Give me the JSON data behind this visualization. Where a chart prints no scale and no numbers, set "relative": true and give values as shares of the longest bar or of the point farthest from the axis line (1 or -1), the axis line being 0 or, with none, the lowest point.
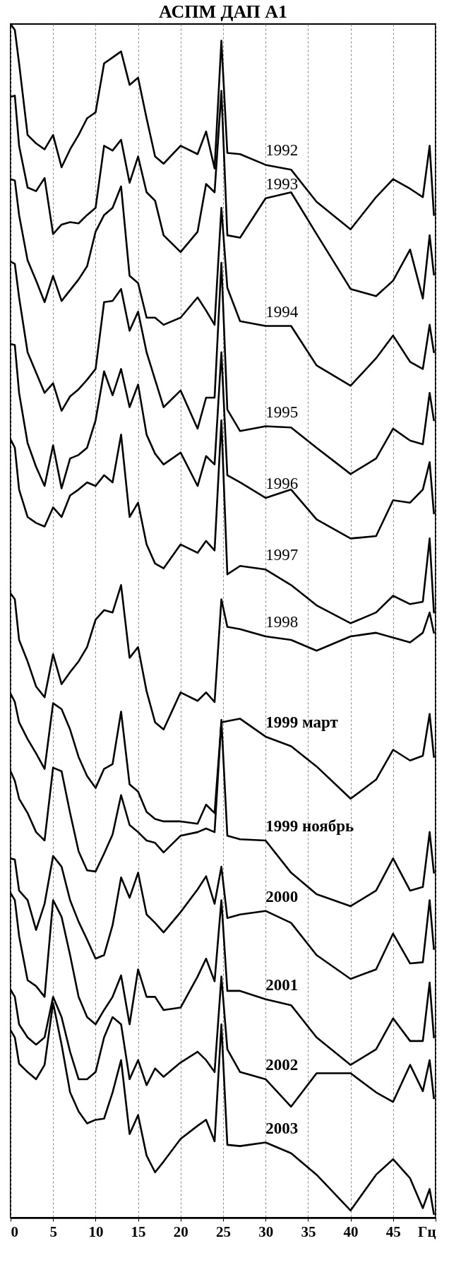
{
  "chart_data": {
    "type": "line",
    "title": "АСПМ   ДАП   А1",
    "relative": true,
    "legend": false,
    "grid": "x",
    "xlim": [
      0,
      50
    ],
    "xticks": [
      0,
      5,
      10,
      15,
      20,
      25,
      30,
      35,
      40,
      45,
      {
        "value": 50,
        "label": "Гц"
      }
    ],
    "x": [
      0,
      0.5,
      1,
      2,
      3,
      4,
      5,
      6,
      7,
      8,
      9,
      10,
      11,
      12,
      13,
      14,
      15,
      16,
      17,
      18,
      20,
      22,
      23,
      24,
      24.8,
      25.5,
      27,
      30,
      33,
      36,
      40,
      43,
      45,
      47,
      48.5,
      49.3,
      49.8
    ],
    "series": [
      {
        "name": "1992",
        "color": "#000000",
        "values": [
          1.0,
          0.995,
          0.967,
          0.907,
          0.9,
          0.895,
          0.907,
          0.88,
          0.895,
          0.907,
          0.921,
          0.926,
          0.967,
          0.972,
          0.977,
          0.949,
          0.955,
          0.921,
          0.889,
          0.883,
          0.898,
          0.891,
          0.91,
          0.879,
          0.986,
          0.892,
          0.891,
          0.882,
          0.878,
          0.851,
          0.828,
          0.855,
          0.87,
          0.862,
          0.855,
          0.898,
          0.84
        ]
      },
      {
        "name": "1993",
        "color": "#000000",
        "values": [
          0.939,
          0.94,
          0.898,
          0.863,
          0.86,
          0.871,
          0.824,
          0.832,
          0.834,
          0.833,
          0.84,
          0.846,
          0.898,
          0.894,
          0.903,
          0.867,
          0.889,
          0.859,
          0.852,
          0.823,
          0.809,
          0.826,
          0.866,
          0.859,
          0.944,
          0.823,
          0.821,
          0.854,
          0.859,
          0.824,
          0.778,
          0.772,
          0.785,
          0.811,
          0.77,
          0.823,
          0.79
        ]
      },
      {
        "name": "1994",
        "color": "#000000",
        "values": [
          0.87,
          0.869,
          0.84,
          0.802,
          0.785,
          0.767,
          0.789,
          0.768,
          0.777,
          0.786,
          0.797,
          0.826,
          0.84,
          0.846,
          0.864,
          0.789,
          0.783,
          0.754,
          0.754,
          0.748,
          0.754,
          0.771,
          0.76,
          0.748,
          0.846,
          0.779,
          0.751,
          0.747,
          0.747,
          0.714,
          0.697,
          0.72,
          0.739,
          0.717,
          0.711,
          0.748,
          0.725
        ]
      },
      {
        "name": "1995",
        "color": "#000000",
        "values": [
          0.801,
          0.799,
          0.771,
          0.725,
          0.708,
          0.691,
          0.699,
          0.676,
          0.688,
          0.694,
          0.702,
          0.711,
          0.767,
          0.768,
          0.778,
          0.743,
          0.759,
          0.725,
          0.702,
          0.679,
          0.693,
          0.661,
          0.687,
          0.687,
          0.8,
          0.677,
          0.659,
          0.663,
          0.662,
          0.645,
          0.623,
          0.636,
          0.661,
          0.651,
          0.648,
          0.691,
          0.668
        ]
      },
      {
        "name": "1996",
        "color": "#000000",
        "values": [
          0.732,
          0.731,
          0.691,
          0.649,
          0.629,
          0.613,
          0.647,
          0.611,
          0.636,
          0.639,
          0.645,
          0.668,
          0.709,
          0.689,
          0.711,
          0.679,
          0.698,
          0.656,
          0.64,
          0.631,
          0.641,
          0.613,
          0.638,
          0.631,
          0.725,
          0.622,
          0.616,
          0.603,
          0.61,
          0.585,
          0.569,
          0.571,
          0.601,
          0.599,
          0.61,
          0.633,
          0.59
        ]
      },
      {
        "name": "1997",
        "color": "#000000",
        "values": [
          0.652,
          0.645,
          0.61,
          0.587,
          0.582,
          0.579,
          0.595,
          0.587,
          0.605,
          0.61,
          0.616,
          0.613,
          0.622,
          0.616,
          0.656,
          0.587,
          0.599,
          0.564,
          0.548,
          0.544,
          0.564,
          0.557,
          0.567,
          0.559,
          0.668,
          0.539,
          0.546,
          0.543,
          0.53,
          0.513,
          0.498,
          0.507,
          0.521,
          0.514,
          0.516,
          0.569,
          0.507
        ]
      },
      {
        "name": "1998",
        "color": "#000000",
        "values": [
          0.523,
          0.518,
          0.484,
          0.466,
          0.445,
          0.436,
          0.472,
          0.447,
          0.457,
          0.466,
          0.478,
          0.501,
          0.509,
          0.507,
          0.53,
          0.469,
          0.478,
          0.441,
          0.415,
          0.409,
          0.44,
          0.433,
          0.44,
          0.432,
          0.518,
          0.495,
          0.493,
          0.487,
          0.484,
          0.475,
          0.487,
          0.49,
          0.486,
          0.482,
          0.49,
          0.507,
          0.49
        ]
      },
      {
        "name": "1999 март",
        "color": "#000000",
        "values": [
          0.439,
          0.432,
          0.415,
          0.401,
          0.389,
          0.376,
          0.431,
          0.426,
          0.409,
          0.386,
          0.37,
          0.36,
          0.376,
          0.38,
          0.424,
          0.363,
          0.357,
          0.34,
          0.334,
          0.332,
          0.332,
          0.33,
          0.346,
          0.339,
          0.415,
          0.416,
          0.418,
          0.403,
          0.395,
          0.378,
          0.351,
          0.367,
          0.392,
          0.383,
          0.387,
          0.422,
          0.386
        ]
      },
      {
        "name": "1999 ноябрь",
        "color": "#000000",
        "values": [
          0.374,
          0.366,
          0.351,
          0.339,
          0.323,
          0.316,
          0.377,
          0.374,
          0.339,
          0.307,
          0.291,
          0.29,
          0.305,
          0.321,
          0.354,
          0.329,
          0.323,
          0.316,
          0.314,
          0.306,
          0.32,
          0.323,
          0.326,
          0.323,
          0.417,
          0.32,
          0.317,
          0.316,
          0.289,
          0.271,
          0.261,
          0.274,
          0.301,
          0.274,
          0.277,
          0.323,
          0.289
        ]
      },
      {
        "name": "2000",
        "color": "#000000",
        "values": [
          0.301,
          0.3,
          0.274,
          0.266,
          0.241,
          0.263,
          0.303,
          0.294,
          0.266,
          0.248,
          0.233,
          0.217,
          0.22,
          0.245,
          0.285,
          0.268,
          0.289,
          0.254,
          0.247,
          0.239,
          0.256,
          0.275,
          0.286,
          0.263,
          0.294,
          0.251,
          0.254,
          0.257,
          0.247,
          0.22,
          0.2,
          0.208,
          0.238,
          0.213,
          0.214,
          0.266,
          0.225
        ]
      },
      {
        "name": "2001",
        "color": "#000000",
        "values": [
          0.272,
          0.266,
          0.236,
          0.199,
          0.194,
          0.185,
          0.266,
          0.252,
          0.22,
          0.185,
          0.168,
          0.162,
          0.174,
          0.185,
          0.203,
          0.162,
          0.208,
          0.185,
          0.185,
          0.174,
          0.176,
          0.202,
          0.217,
          0.198,
          0.266,
          0.19,
          0.19,
          0.183,
          0.178,
          0.151,
          0.128,
          0.141,
          0.167,
          0.148,
          0.148,
          0.197,
          0.151
        ]
      },
      {
        "name": "2002",
        "color": "#000000",
        "values": [
          0.191,
          0.185,
          0.162,
          0.151,
          0.145,
          0.151,
          0.185,
          0.168,
          0.139,
          0.116,
          0.116,
          0.122,
          0.151,
          0.168,
          0.162,
          0.116,
          0.132,
          0.111,
          0.125,
          0.118,
          0.13,
          0.139,
          0.132,
          0.122,
          0.202,
          0.141,
          0.122,
          0.116,
          0.093,
          0.121,
          0.121,
          0.105,
          0.097,
          0.128,
          0.106,
          0.132,
          0.1
        ]
      },
      {
        "name": "2003",
        "color": "#000000",
        "values": [
          0.157,
          0.151,
          0.129,
          0.122,
          0.116,
          0.128,
          0.18,
          0.145,
          0.105,
          0.089,
          0.079,
          0.082,
          0.083,
          0.105,
          0.132,
          0.07,
          0.086,
          0.052,
          0.038,
          0.047,
          0.066,
          0.077,
          0.082,
          0.064,
          0.162,
          0.061,
          0.06,
          0.063,
          0.054,
          0.036,
          0.006,
          0.036,
          0.049,
          0.033,
          0.008,
          0.024,
          0.003
        ]
      }
    ]
  }
}
